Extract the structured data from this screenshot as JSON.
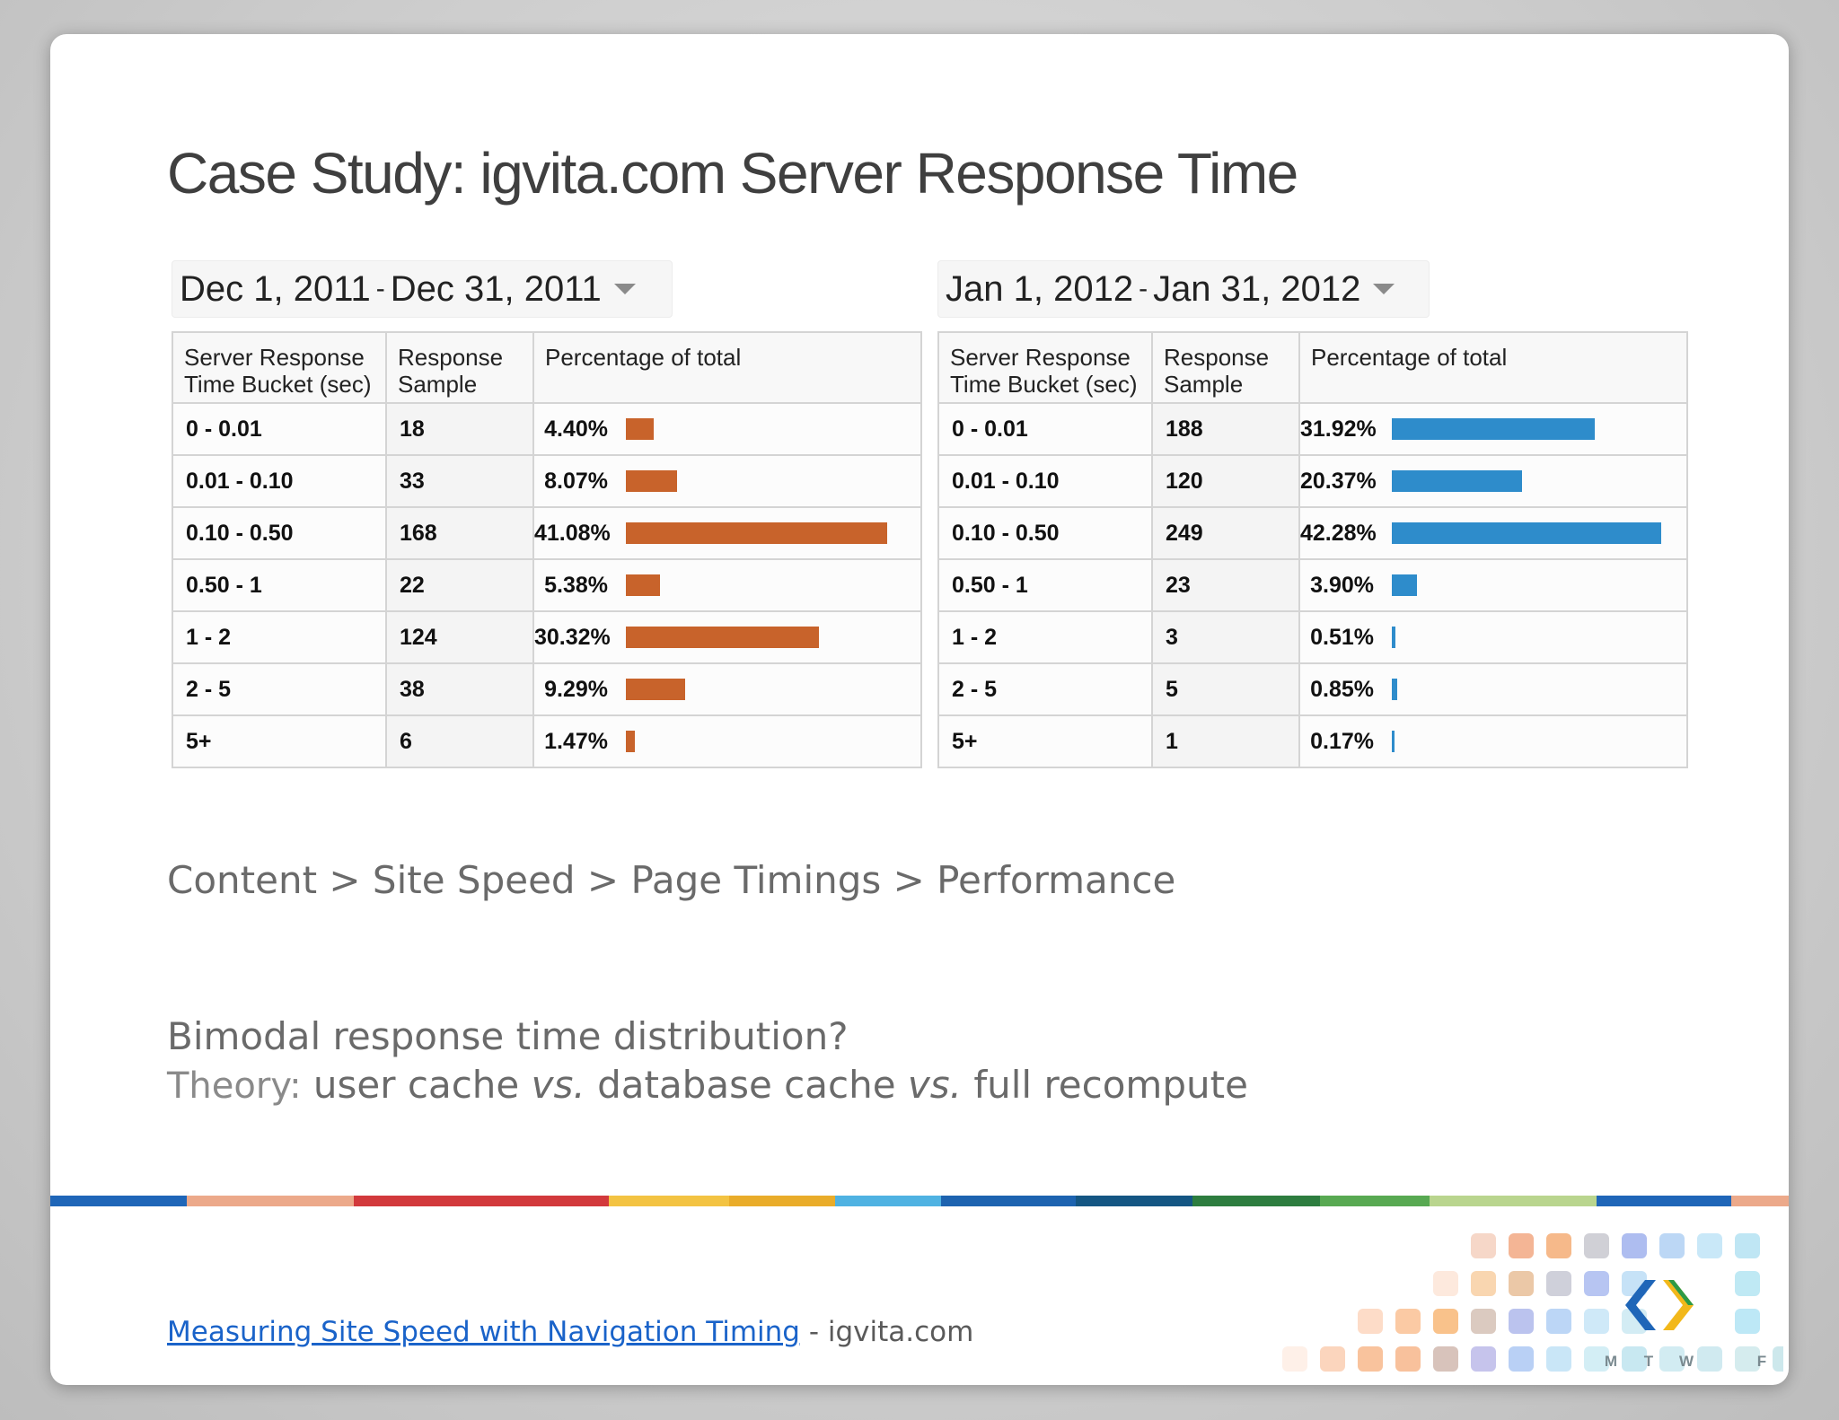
{
  "title": "Case Study: igvita.com Server Response Time",
  "left": {
    "date_start": "Dec 1, 2011",
    "date_sep": "-",
    "date_end": "Dec 31, 2011",
    "headers": [
      "Server Response\nTime Bucket (sec)",
      "Response\nSample",
      "Percentage of total"
    ],
    "bar_color": "#c8632b",
    "rows": [
      {
        "bucket": "0 - 0.01",
        "sample": "18",
        "pct": "4.40%",
        "value": 4.4
      },
      {
        "bucket": "0.01 - 0.10",
        "sample": "33",
        "pct": "8.07%",
        "value": 8.07
      },
      {
        "bucket": "0.10 - 0.50",
        "sample": "168",
        "pct": "41.08%",
        "value": 41.08
      },
      {
        "bucket": "0.50 - 1",
        "sample": "22",
        "pct": "5.38%",
        "value": 5.38
      },
      {
        "bucket": "1 - 2",
        "sample": "124",
        "pct": "30.32%",
        "value": 30.32
      },
      {
        "bucket": "2 - 5",
        "sample": "38",
        "pct": "9.29%",
        "value": 9.29
      },
      {
        "bucket": "5+",
        "sample": "6",
        "pct": "1.47%",
        "value": 1.47
      }
    ]
  },
  "right": {
    "date_start": "Jan 1, 2012",
    "date_sep": "-",
    "date_end": "Jan 31, 2012",
    "headers": [
      "Server Response\nTime Bucket (sec)",
      "Response\nSample",
      "Percentage of total"
    ],
    "bar_color": "#2e8ccb",
    "rows": [
      {
        "bucket": "0 - 0.01",
        "sample": "188",
        "pct": "31.92%",
        "value": 31.92
      },
      {
        "bucket": "0.01 - 0.10",
        "sample": "120",
        "pct": "20.37%",
        "value": 20.37
      },
      {
        "bucket": "0.10 - 0.50",
        "sample": "249",
        "pct": "42.28%",
        "value": 42.28
      },
      {
        "bucket": "0.50 - 1",
        "sample": "23",
        "pct": "3.90%",
        "value": 3.9
      },
      {
        "bucket": "1 - 2",
        "sample": "3",
        "pct": "0.51%",
        "value": 0.51
      },
      {
        "bucket": "2 - 5",
        "sample": "5",
        "pct": "0.85%",
        "value": 0.85
      },
      {
        "bucket": "5+",
        "sample": "1",
        "pct": "0.17%",
        "value": 0.17
      }
    ]
  },
  "breadcrumb": "Content > Site Speed > Page Timings > Performance",
  "question": "Bimodal response time distribution?",
  "theory": {
    "label": "Theory:",
    "part1": "user cache",
    "vs1": "vs.",
    "part2": "database cache",
    "vs2": "vs.",
    "part3": "full recompute"
  },
  "footer": {
    "link_text": "Measuring Site Speed with Navigation Timing",
    "suffix": "- igvita.com"
  },
  "logo": {
    "day_letters": [
      "M",
      "T",
      "W",
      "F"
    ]
  },
  "stripe_colors": [
    "#1f66b8",
    "#eca98a",
    "#d2393c",
    "#d2393c",
    "#f3c342",
    "#e9ac2a",
    "#4fb2e2",
    "#1d63b0",
    "#145683",
    "#2d7d3f",
    "#58a952",
    "#b9d58e",
    "#1f66b8",
    "#eca98a"
  ]
}
